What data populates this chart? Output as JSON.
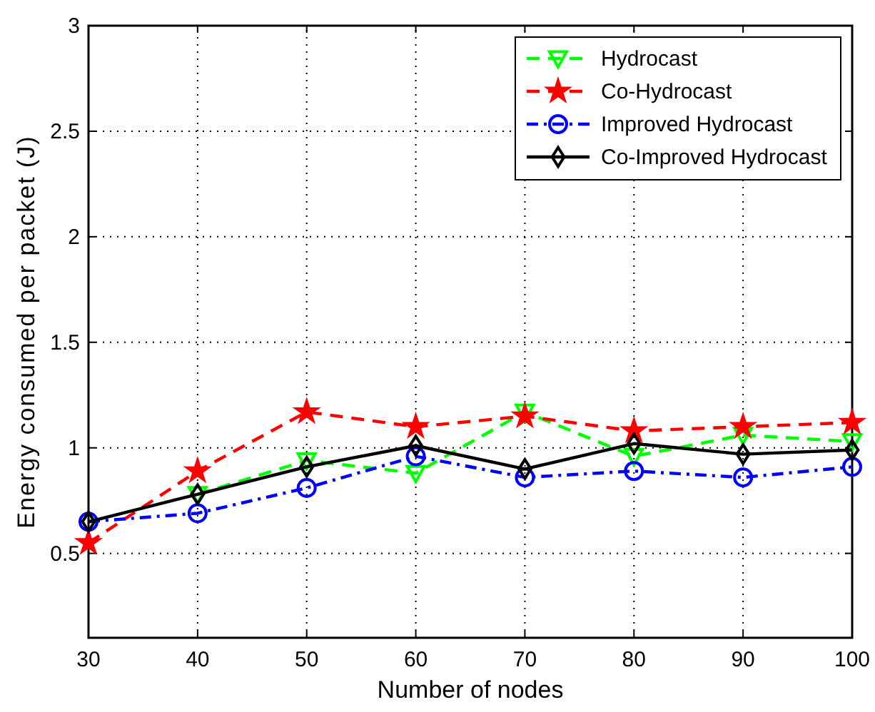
{
  "chart_data": {
    "type": "line",
    "xlabel": "Number of nodes",
    "ylabel": "Energy consumed per packet (J)",
    "x": [
      30,
      40,
      50,
      60,
      70,
      80,
      90,
      100
    ],
    "xlim": [
      30,
      100
    ],
    "xticks": [
      30,
      40,
      50,
      60,
      70,
      80,
      90,
      100
    ],
    "ylim": [
      0.1,
      3
    ],
    "yticks": [
      0.5,
      1,
      1.5,
      2,
      2.5,
      3
    ],
    "grid": true,
    "legend": "top right",
    "series": [
      {
        "name": "Hydrocast",
        "color": "#00ff00",
        "marker": "triangle",
        "line_style": "dashed",
        "values": [
          null,
          0.78,
          0.94,
          0.88,
          1.17,
          0.96,
          1.06,
          1.03
        ]
      },
      {
        "name": "Co-Hydrocast",
        "color": "#ff0000",
        "marker": "star",
        "line_style": "dashed",
        "values": [
          0.55,
          0.89,
          1.17,
          1.1,
          1.15,
          1.08,
          1.1,
          1.12
        ]
      },
      {
        "name": "Improved Hydrocast",
        "color": "#0000ff",
        "marker": "circle",
        "line_style": "dashdot",
        "values": [
          0.65,
          0.69,
          0.81,
          0.96,
          0.86,
          0.89,
          0.86,
          0.91
        ]
      },
      {
        "name": "Co-Improved Hydrocast",
        "color": "#000000",
        "marker": "diamond",
        "line_style": "solid",
        "values": [
          0.65,
          0.78,
          0.91,
          1.01,
          0.9,
          1.02,
          0.97,
          0.99
        ]
      }
    ]
  }
}
